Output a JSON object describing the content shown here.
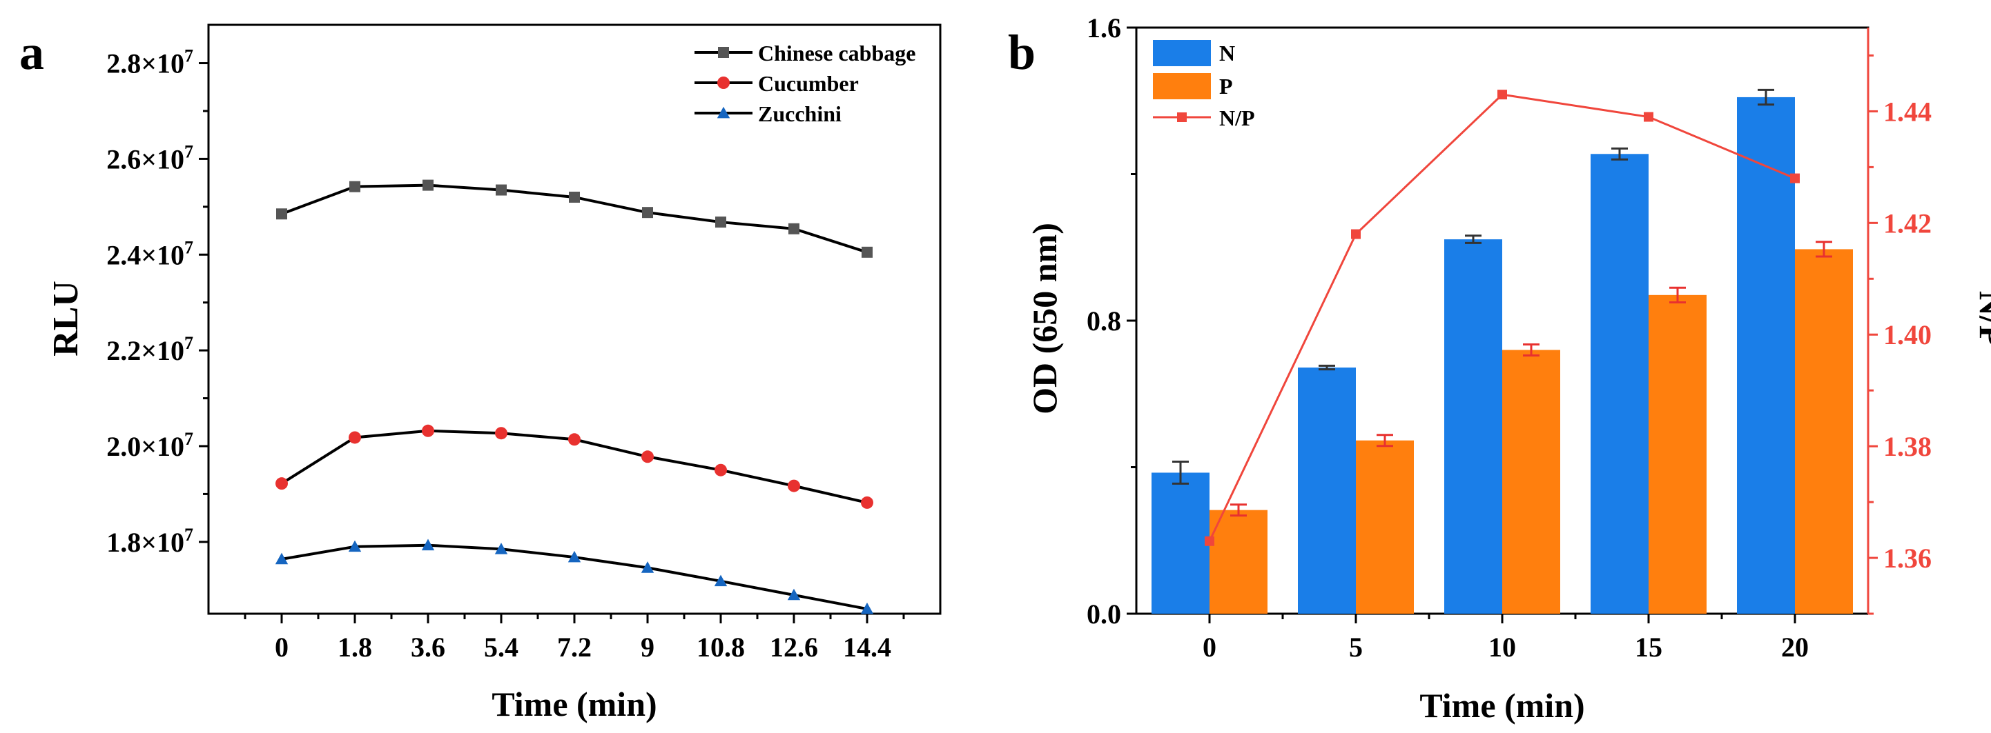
{
  "chart_data": [
    {
      "type": "line",
      "panel_label": "a",
      "xlabel": "Time (min)",
      "ylabel": "RLU",
      "x": [
        0,
        1.8,
        3.6,
        5.4,
        7.2,
        9,
        10.8,
        12.6,
        14.4
      ],
      "x_tick_labels": [
        "0",
        "1.8",
        "3.6",
        "5.4",
        "7.2",
        "9",
        "10.8",
        "12.6",
        "14.4"
      ],
      "xlim": [
        -1.8,
        16.2
      ],
      "ylim": [
        16500000,
        28800000
      ],
      "y_ticks": [
        {
          "value": 18000000,
          "mantissa": "1.8",
          "exp": "7"
        },
        {
          "value": 20000000,
          "mantissa": "2.0",
          "exp": "7"
        },
        {
          "value": 22000000,
          "mantissa": "2.2",
          "exp": "7"
        },
        {
          "value": 24000000,
          "mantissa": "2.4",
          "exp": "7"
        },
        {
          "value": 26000000,
          "mantissa": "2.6",
          "exp": "7"
        },
        {
          "value": 28000000,
          "mantissa": "2.8",
          "exp": "7"
        }
      ],
      "y_tick_times": "×10",
      "legend_position": "top-right",
      "series": [
        {
          "name": "Chinese cabbage",
          "marker": "square",
          "color": "#555555",
          "values": [
            24850000,
            25420000,
            25450000,
            25350000,
            25200000,
            24880000,
            24680000,
            24540000,
            24050000
          ]
        },
        {
          "name": "Cucumber",
          "marker": "circle",
          "color": "#e8312f",
          "values": [
            19220000,
            20180000,
            20320000,
            20270000,
            20140000,
            19780000,
            19500000,
            19170000,
            18820000
          ]
        },
        {
          "name": "Zucchini",
          "marker": "triangle",
          "color": "#1565c0",
          "values": [
            17640000,
            17900000,
            17930000,
            17850000,
            17680000,
            17460000,
            17180000,
            16890000,
            16600000
          ]
        }
      ]
    },
    {
      "type": "bar",
      "panel_label": "b",
      "xlabel": "Time (min)",
      "ylabel": "OD (650 nm)",
      "y2label": "N/P",
      "categories": [
        "0",
        "5",
        "10",
        "15",
        "20"
      ],
      "ylim": [
        0,
        1.6
      ],
      "y_ticks": [
        "0.0",
        "0.8",
        "1.6"
      ],
      "y2lim": [
        1.35,
        1.455
      ],
      "y2_ticks": [
        "1.36",
        "1.38",
        "1.40",
        "1.42",
        "1.44"
      ],
      "legend_position": "top-left",
      "series": [
        {
          "name": "N",
          "color": "#1a7ee8",
          "values": [
            0.385,
            0.672,
            1.022,
            1.255,
            1.41
          ],
          "errors": [
            0.03,
            0.005,
            0.01,
            0.015,
            0.02
          ]
        },
        {
          "name": "P",
          "color": "#ff7f0e",
          "values": [
            0.283,
            0.473,
            0.72,
            0.87,
            0.995
          ],
          "errors": [
            0.015,
            0.015,
            0.015,
            0.02,
            0.02
          ]
        }
      ],
      "line_series": {
        "name": "N/P",
        "color": "#f0463c",
        "axis": "right",
        "values": [
          1.363,
          1.418,
          1.443,
          1.439,
          1.428
        ]
      },
      "axis_color_right": "#f0463c"
    }
  ]
}
